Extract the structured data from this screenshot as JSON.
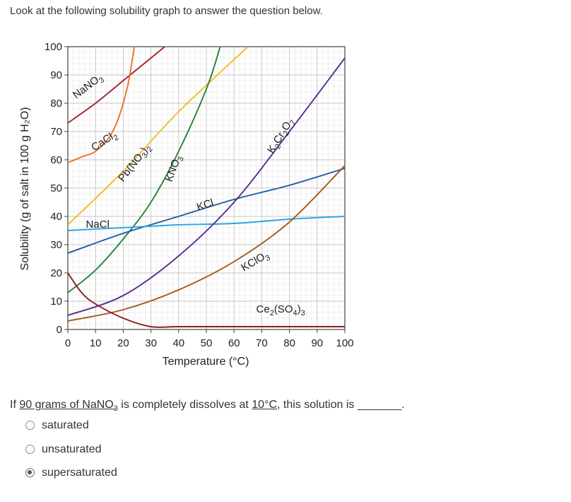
{
  "intro_text": "Look at the following solubility graph to answer the question below.",
  "question": {
    "prefix": "If ",
    "amount": "90 grams of NaNO",
    "amount_sub": "3",
    "middle": " is completely dissolves at ",
    "temp": "10°C",
    "suffix": ", this solution is _______."
  },
  "options": [
    {
      "label": "saturated",
      "selected": false
    },
    {
      "label": "unsaturated",
      "selected": false
    },
    {
      "label": "supersaturated",
      "selected": true
    }
  ],
  "chart_data": {
    "type": "line",
    "xlabel": "Temperature (°C)",
    "ylabel": "Solubility (g of salt in 100 g H₂O)",
    "xlim": [
      0,
      100
    ],
    "ylim": [
      0,
      100
    ],
    "xticks": [
      0,
      10,
      20,
      30,
      40,
      50,
      60,
      70,
      80,
      90,
      100
    ],
    "yticks": [
      0,
      10,
      20,
      30,
      40,
      50,
      60,
      70,
      80,
      90,
      100
    ],
    "grid": true,
    "series": [
      {
        "name": "NaNO3",
        "color": "#a3222b",
        "label_at": [
          3.0,
          81.5
        ],
        "label_angle": -37,
        "points": [
          [
            0,
            73
          ],
          [
            10,
            80
          ],
          [
            20,
            88
          ],
          [
            25,
            92
          ],
          [
            35,
            100
          ]
        ]
      },
      {
        "name": "CaCl2",
        "color": "#e8702a",
        "label_at": [
          9.5,
          63
        ],
        "label_angle": -33,
        "points": [
          [
            0,
            59
          ],
          [
            5,
            61
          ],
          [
            10,
            63
          ],
          [
            15,
            68
          ],
          [
            18,
            74
          ],
          [
            20,
            80
          ],
          [
            22,
            88
          ],
          [
            24,
            100
          ]
        ]
      },
      {
        "name": "Pb(NO3)2",
        "color": "#ecbf24",
        "label_at": [
          20,
          52
        ],
        "label_angle": -52,
        "points": [
          [
            0,
            37
          ],
          [
            20,
            56
          ],
          [
            40,
            77
          ],
          [
            65,
            100
          ]
        ]
      },
      {
        "name": "KNO3",
        "color": "#22843a",
        "label_at": [
          37.5,
          52
        ],
        "label_angle": -70,
        "points": [
          [
            0,
            13
          ],
          [
            10,
            21
          ],
          [
            20,
            32
          ],
          [
            30,
            45
          ],
          [
            40,
            63
          ],
          [
            50,
            85
          ],
          [
            55,
            100
          ]
        ]
      },
      {
        "name": "KCl",
        "color": "#1c5ca4",
        "label_at": [
          47,
          42
        ],
        "label_angle": -18,
        "points": [
          [
            0,
            27
          ],
          [
            20,
            34
          ],
          [
            40,
            40
          ],
          [
            60,
            46
          ],
          [
            80,
            51
          ],
          [
            100,
            57
          ]
        ]
      },
      {
        "name": "NaCl",
        "color": "#2ba6e0",
        "label_at": [
          6.5,
          36
        ],
        "label_angle": 0,
        "points": [
          [
            0,
            35
          ],
          [
            20,
            36
          ],
          [
            40,
            37
          ],
          [
            60,
            37.5
          ],
          [
            80,
            39
          ],
          [
            100,
            40
          ]
        ]
      },
      {
        "name": "K2Cr2O7",
        "color": "#5b2d8c",
        "label_at": [
          74,
          62
        ],
        "label_angle": -58,
        "points": [
          [
            0,
            5
          ],
          [
            20,
            12
          ],
          [
            40,
            26
          ],
          [
            60,
            45
          ],
          [
            80,
            70
          ],
          [
            100,
            96
          ]
        ]
      },
      {
        "name": "KClO3",
        "color": "#a35a1c",
        "label_at": [
          63.5,
          20.5
        ],
        "label_angle": -30,
        "points": [
          [
            0,
            3
          ],
          [
            20,
            7
          ],
          [
            40,
            14
          ],
          [
            60,
            24
          ],
          [
            80,
            38
          ],
          [
            100,
            58
          ]
        ]
      },
      {
        "name": "Ce2(SO4)3",
        "color": "#8c1c23",
        "label_at": [
          68,
          6
        ],
        "label_angle": 0,
        "points": [
          [
            0,
            20
          ],
          [
            5,
            13
          ],
          [
            10,
            9
          ],
          [
            20,
            4
          ],
          [
            30,
            1
          ],
          [
            40,
            1
          ],
          [
            60,
            1
          ],
          [
            80,
            1
          ],
          [
            100,
            1
          ]
        ]
      }
    ]
  }
}
